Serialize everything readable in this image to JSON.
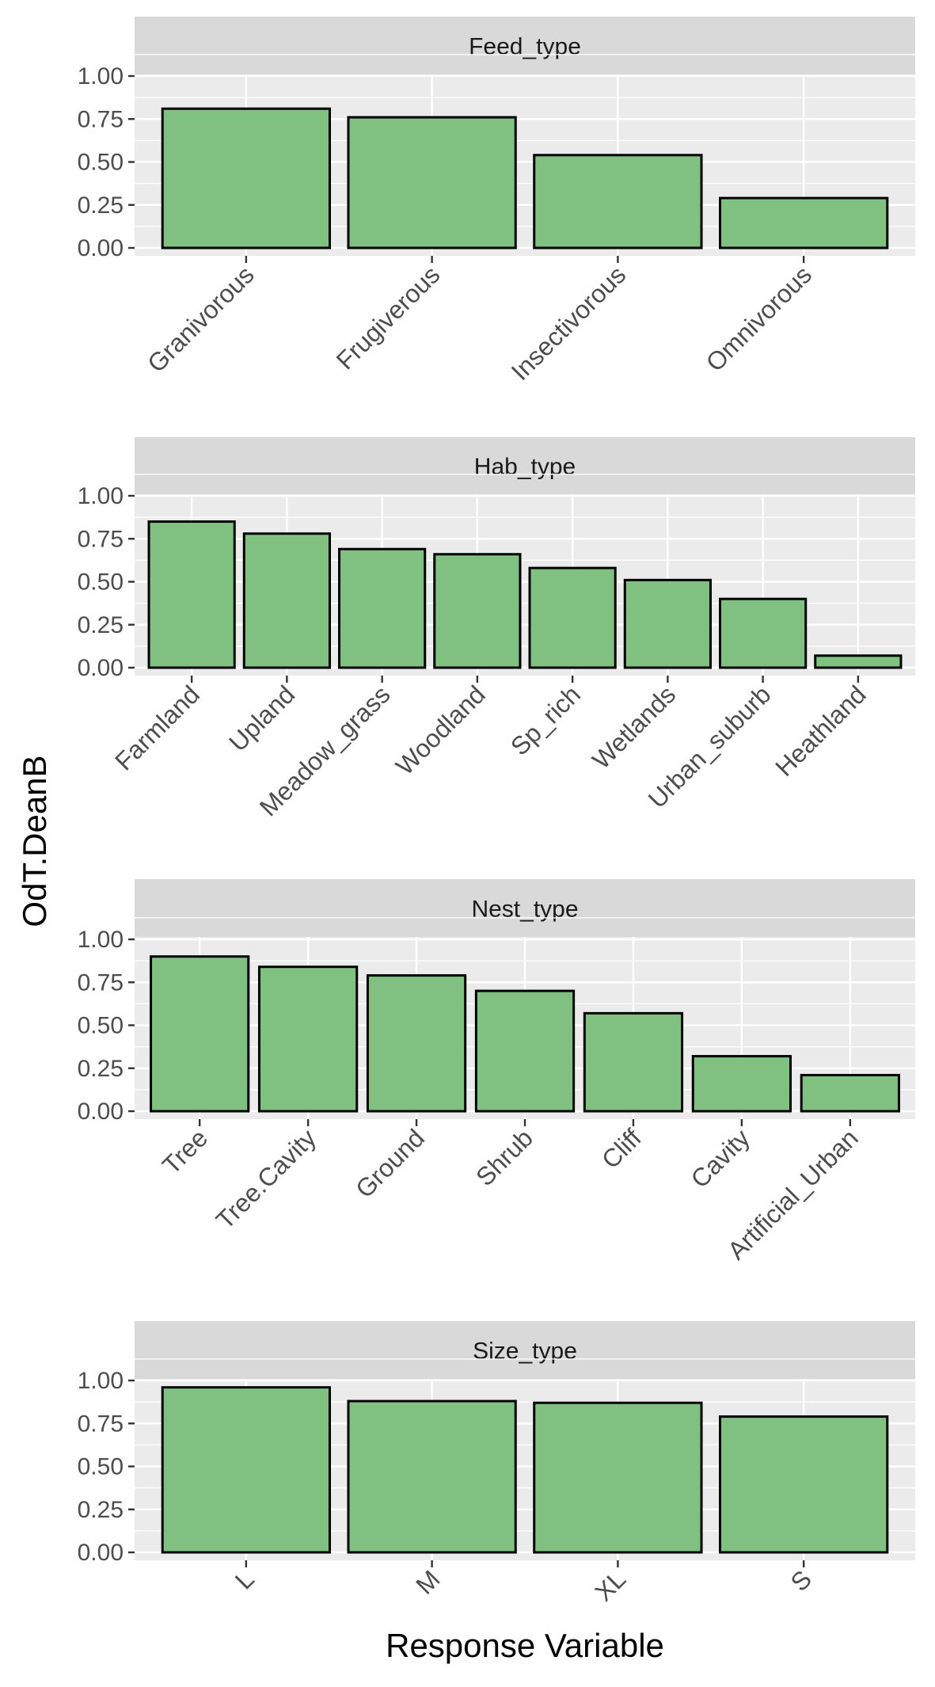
{
  "colors": {
    "panel_background": "#ebebeb",
    "strip_background": "#d9d9d9",
    "grid_line": "#ffffff",
    "bar_fill": "#80c080",
    "bar_outline": "#000000",
    "tick_text": "#4d4d4d",
    "title_text": "#000000"
  },
  "chart_data": {
    "type": "bar",
    "layout": "faceted (4 panels stacked vertically, shared y label)",
    "xlabel": "Response Variable",
    "ylabel": "OdT.DeanB",
    "ylim": [
      0,
      1.2
    ],
    "yticks": [
      "0.00",
      "0.25",
      "0.50",
      "0.75",
      "1.00"
    ],
    "grid": true,
    "legend": "none",
    "panels": [
      {
        "strip": "Feed_type",
        "categories": [
          "Granivorous",
          "Frugiverous",
          "Insectivorous",
          "Omnivorous"
        ],
        "values": [
          0.81,
          0.76,
          0.54,
          0.29
        ]
      },
      {
        "strip": "Hab_type",
        "categories": [
          "Farmland",
          "Upland",
          "Meadow_grass",
          "Woodland",
          "Sp_rich",
          "Wetlands",
          "Urban_suburb",
          "Heathland"
        ],
        "values": [
          0.85,
          0.78,
          0.69,
          0.66,
          0.58,
          0.51,
          0.4,
          0.07
        ]
      },
      {
        "strip": "Nest_type",
        "categories": [
          "Tree",
          "Tree.Cavity",
          "Ground",
          "Shrub",
          "Cliff",
          "Cavity",
          "Artificial_Urban"
        ],
        "values": [
          0.9,
          0.84,
          0.79,
          0.7,
          0.57,
          0.32,
          0.21
        ]
      },
      {
        "strip": "Size_type",
        "categories": [
          "L",
          "M",
          "XL",
          "S"
        ],
        "values": [
          0.96,
          0.88,
          0.87,
          0.79
        ]
      }
    ]
  }
}
